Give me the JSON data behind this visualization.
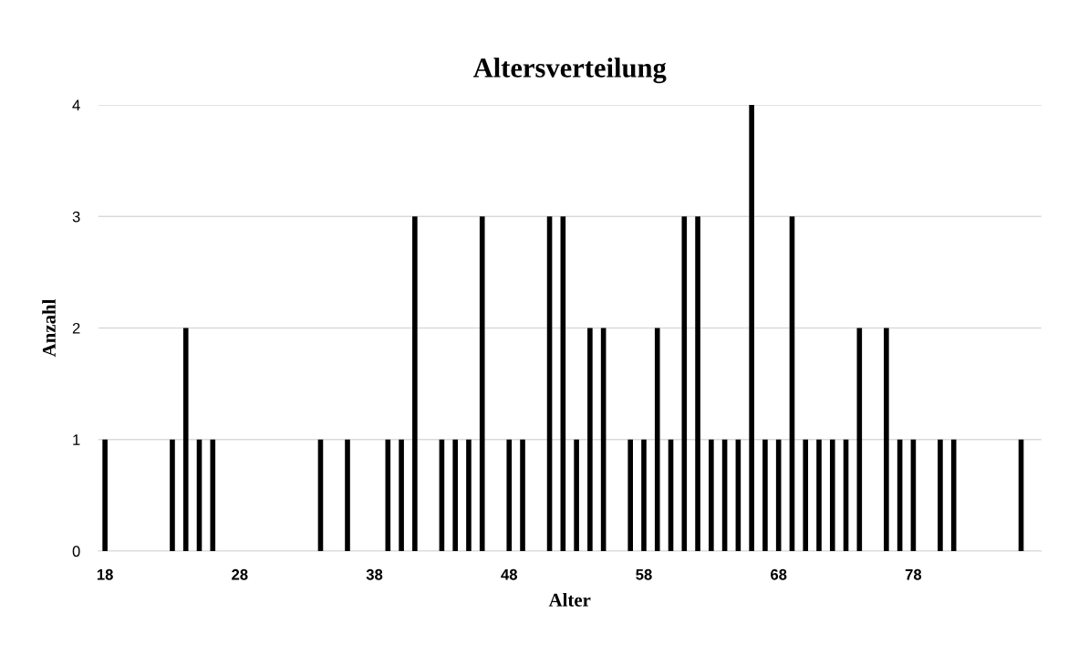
{
  "chart_data": {
    "type": "bar",
    "title": "Altersverteilung",
    "xlabel": "Alter",
    "ylabel": "Anzahl",
    "x": [
      18,
      23,
      24,
      25,
      26,
      34,
      36,
      39,
      40,
      41,
      43,
      44,
      45,
      46,
      48,
      49,
      51,
      52,
      53,
      54,
      55,
      57,
      58,
      59,
      60,
      61,
      62,
      63,
      64,
      65,
      66,
      67,
      68,
      69,
      70,
      71,
      72,
      73,
      74,
      76,
      77,
      78,
      80,
      81,
      86
    ],
    "values": [
      1,
      1,
      2,
      1,
      1,
      1,
      1,
      1,
      1,
      3,
      1,
      1,
      1,
      3,
      1,
      1,
      3,
      3,
      1,
      2,
      2,
      1,
      1,
      2,
      1,
      3,
      3,
      1,
      1,
      1,
      4,
      1,
      1,
      3,
      1,
      1,
      1,
      1,
      2,
      2,
      1,
      1,
      1,
      1,
      1
    ],
    "color": "#000000",
    "xlim": [
      17.5,
      87.5
    ],
    "xticks": [
      18,
      28,
      38,
      48,
      58,
      68,
      78
    ],
    "ylim": [
      0,
      4
    ],
    "yticks": [
      0,
      1,
      2,
      3,
      4
    ],
    "grid": "y",
    "legend": false
  }
}
